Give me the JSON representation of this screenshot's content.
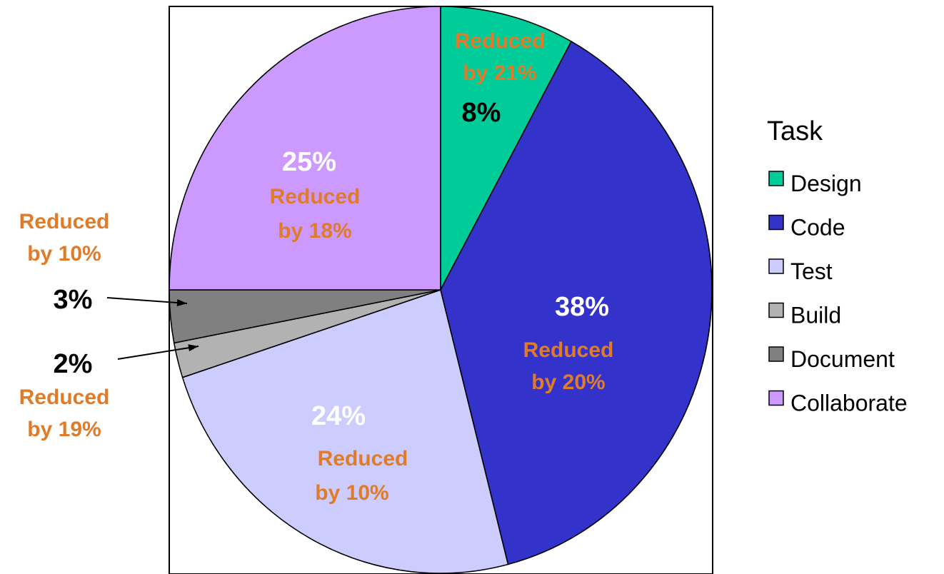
{
  "chart_data": {
    "type": "pie",
    "legend_title": "Task",
    "legend_position": "right",
    "slices": [
      {
        "label": "Design",
        "value": 8,
        "value_label": "8%",
        "note": [
          "Reduced",
          "by 21%"
        ],
        "color": "#00CC99",
        "value_color": "#000000"
      },
      {
        "label": "Code",
        "value": 38,
        "value_label": "38%",
        "note": [
          "Reduced",
          "by 20%"
        ],
        "color": "#3333CC",
        "value_color": "#FFFFFF"
      },
      {
        "label": "Test",
        "value": 24,
        "value_label": "24%",
        "note": [
          "Reduced",
          "by 10%"
        ],
        "color": "#CCCCFF",
        "value_color": "#FFFFFF"
      },
      {
        "label": "Build",
        "value": 2,
        "value_label": "2%",
        "note": [
          "Reduced",
          "by 19%"
        ],
        "color": "#B2B2B2",
        "value_color": "#000000"
      },
      {
        "label": "Document",
        "value": 3,
        "value_label": "3%",
        "note": [
          "Reduced",
          "by 10%"
        ],
        "color": "#808080",
        "value_color": "#000000"
      },
      {
        "label": "Collaborate",
        "value": 25,
        "value_label": "25%",
        "note": [
          "Reduced",
          "by 18%"
        ],
        "color": "#CC99FF",
        "value_color": "#FFFFFF"
      }
    ],
    "note_color": "#E07B2A"
  }
}
